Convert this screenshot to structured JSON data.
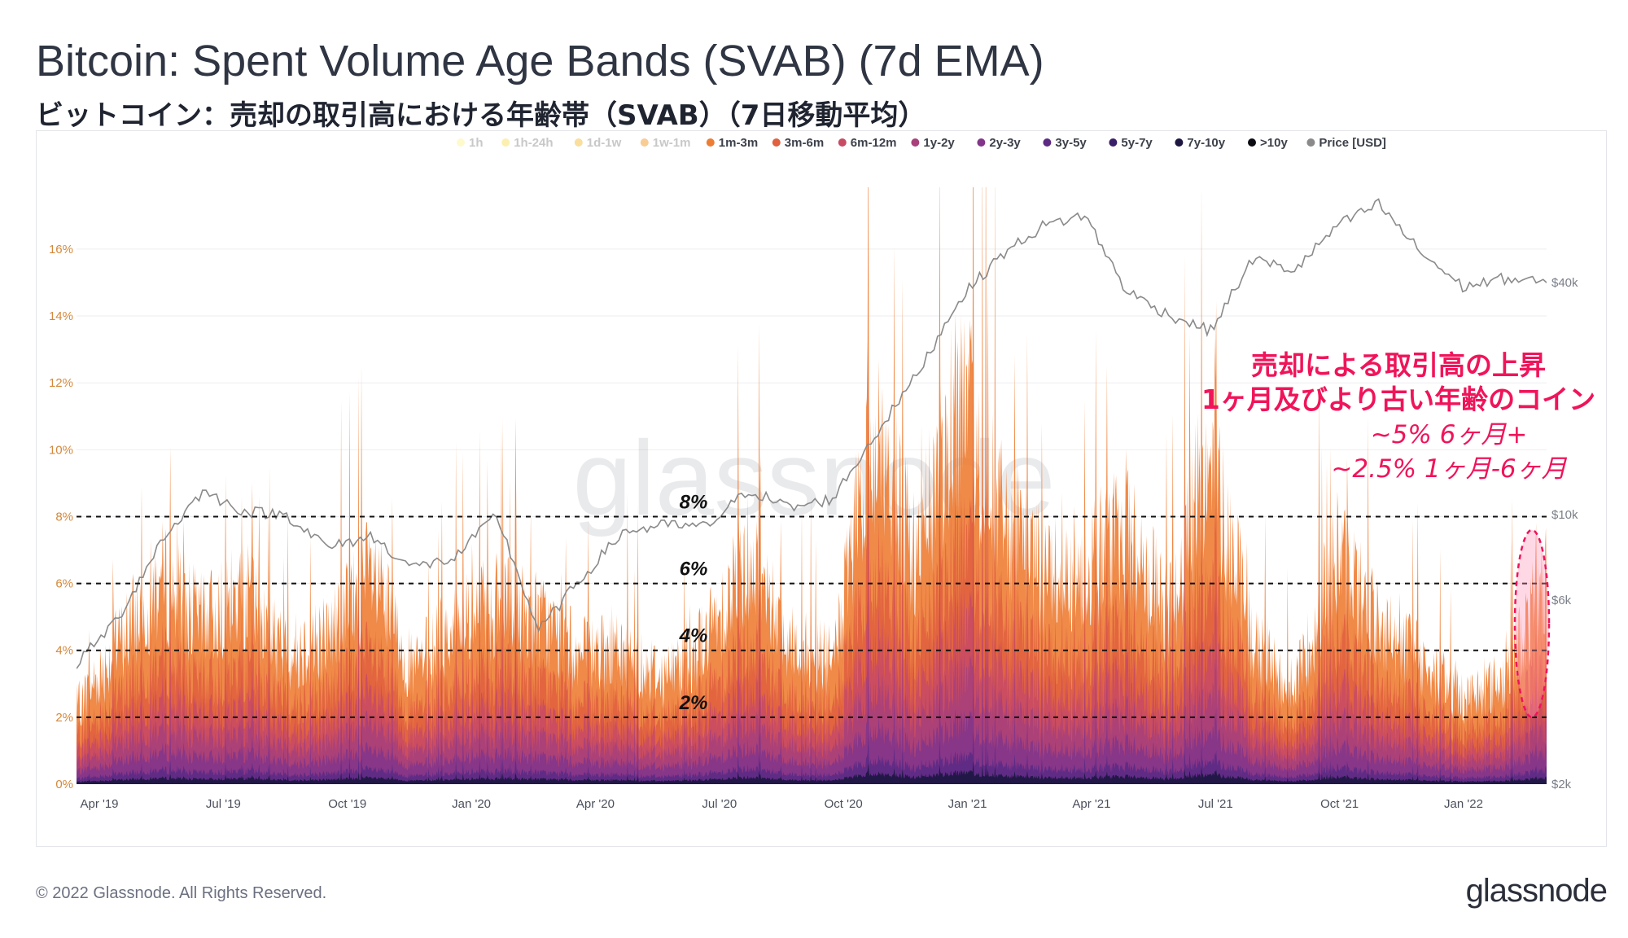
{
  "header": {
    "title": "Bitcoin: Spent Volume Age Bands (SVAB) (7d EMA)",
    "subtitle": "ビットコイン：売却の取引高における年齢帯（SVAB）（7日移動平均）"
  },
  "footer": {
    "copyright": "© 2022 Glassnode. All Rights Reserved.",
    "brand": "glassnode"
  },
  "chart_data": {
    "type": "area",
    "title": "Bitcoin: Spent Volume Age Bands (SVAB) (7d EMA)",
    "watermark": "glassnode",
    "legend_position": "top",
    "legend": [
      {
        "name": "1h",
        "color": "#fff59a"
      },
      {
        "name": "1h-24h",
        "color": "#f7e265"
      },
      {
        "name": "1d-1w",
        "color": "#f6bd3a"
      },
      {
        "name": "1w-1m",
        "color": "#f49a2a"
      },
      {
        "name": "1m-3m",
        "color": "#ee7d34"
      },
      {
        "name": "3m-6m",
        "color": "#e0603f"
      },
      {
        "name": "6m-12m",
        "color": "#c94a63"
      },
      {
        "name": "1y-2y",
        "color": "#a8407a"
      },
      {
        "name": "2y-3y",
        "color": "#83358a"
      },
      {
        "name": "3y-5y",
        "color": "#5c2a85"
      },
      {
        "name": "5y-7y",
        "color": "#3a1e6a"
      },
      {
        "name": "7y-10y",
        "color": "#1c1640"
      },
      {
        "name": ">10y",
        "color": "#0b0b12"
      },
      {
        "name": "Price [USD]",
        "color": "#8a8a8a"
      }
    ],
    "x_ticks": [
      "Apr '19",
      "Jul '19",
      "Oct '19",
      "Jan '20",
      "Apr '20",
      "Jul '20",
      "Oct '20",
      "Jan '21",
      "Apr '21",
      "Jul '21",
      "Oct '21",
      "Jan '22"
    ],
    "y_left": {
      "ticks": [
        "0%",
        "2%",
        "4%",
        "6%",
        "8%",
        "10%",
        "12%",
        "14%",
        "16%"
      ],
      "values": [
        0,
        2,
        4,
        6,
        8,
        10,
        12,
        14,
        16
      ],
      "range": [
        0,
        17.8
      ]
    },
    "y_right": {
      "ticks": [
        "$2k",
        "$6k",
        "$10k",
        "$40k"
      ],
      "values": [
        2000,
        6000,
        10000,
        40000
      ],
      "range": [
        2000,
        70000
      ],
      "scale": "log"
    },
    "reference_lines": [
      {
        "value": 2,
        "label": "2%"
      },
      {
        "value": 4,
        "label": "4%"
      },
      {
        "value": 6,
        "label": "6%"
      },
      {
        "value": 8,
        "label": "8%"
      }
    ],
    "annotation": {
      "lines": [
        "売却による取引高の上昇",
        "1ヶ月及びより古い年齢のコイン",
        "~5% 6ヶ月+",
        "~2.5% 1ヶ月-6ヶ月"
      ],
      "color": "#f0145a",
      "highlight_period": "Mar '22",
      "highlight_range": [
        2.0,
        7.6
      ]
    },
    "series_total_percent": [
      {
        "x": "Apr '19",
        "y": 2.8
      },
      {
        "x": "May '19",
        "y": 5.2
      },
      {
        "x": "Jun '19",
        "y": 7.6
      },
      {
        "x": "Jul '19",
        "y": 6.0
      },
      {
        "x": "Aug '19",
        "y": 7.1
      },
      {
        "x": "Sep '19",
        "y": 4.8
      },
      {
        "x": "Oct '19",
        "y": 5.6
      },
      {
        "x": "Nov '19",
        "y": 7.8
      },
      {
        "x": "Dec '19",
        "y": 4.2
      },
      {
        "x": "Jan '20",
        "y": 6.0
      },
      {
        "x": "Feb '20",
        "y": 6.6
      },
      {
        "x": "Mar '20",
        "y": 6.2
      },
      {
        "x": "Apr '20",
        "y": 4.8
      },
      {
        "x": "May '20",
        "y": 4.9
      },
      {
        "x": "Jun '20",
        "y": 4.0
      },
      {
        "x": "Jul '20",
        "y": 5.4
      },
      {
        "x": "Aug '20",
        "y": 8.6
      },
      {
        "x": "Sep '20",
        "y": 5.3
      },
      {
        "x": "Oct '20",
        "y": 4.5
      },
      {
        "x": "Nov '20",
        "y": 13.0
      },
      {
        "x": "Dec '20",
        "y": 8.3
      },
      {
        "x": "Jan '21",
        "y": 14.6
      },
      {
        "x": "Feb '21",
        "y": 10.0
      },
      {
        "x": "Mar '21",
        "y": 7.9
      },
      {
        "x": "Apr '21",
        "y": 8.1
      },
      {
        "x": "May '21",
        "y": 9.4
      },
      {
        "x": "Jun '21",
        "y": 6.2
      },
      {
        "x": "Jul '21",
        "y": 12.6
      },
      {
        "x": "Aug '21",
        "y": 5.2
      },
      {
        "x": "Sep '21",
        "y": 3.5
      },
      {
        "x": "Oct '21",
        "y": 8.6
      },
      {
        "x": "Nov '21",
        "y": 6.0
      },
      {
        "x": "Dec '21",
        "y": 4.6
      },
      {
        "x": "Jan '22",
        "y": 3.2
      },
      {
        "x": "Feb '22",
        "y": 3.9
      },
      {
        "x": "Mar '22",
        "y": 7.6
      }
    ],
    "price_usd": [
      {
        "x": "Apr '19",
        "y": 4100
      },
      {
        "x": "May '19",
        "y": 5400
      },
      {
        "x": "Jun '19",
        "y": 8500
      },
      {
        "x": "Jul '19",
        "y": 11500
      },
      {
        "x": "Aug '19",
        "y": 10200
      },
      {
        "x": "Sep '19",
        "y": 10000
      },
      {
        "x": "Oct '19",
        "y": 8200
      },
      {
        "x": "Nov '19",
        "y": 8800
      },
      {
        "x": "Dec '19",
        "y": 7300
      },
      {
        "x": "Jan '20",
        "y": 7700
      },
      {
        "x": "Feb '20",
        "y": 10000
      },
      {
        "x": "Mar '20",
        "y": 5000
      },
      {
        "x": "Apr '20",
        "y": 6800
      },
      {
        "x": "May '20",
        "y": 9000
      },
      {
        "x": "Jun '20",
        "y": 9400
      },
      {
        "x": "Jul '20",
        "y": 9300
      },
      {
        "x": "Aug '20",
        "y": 11600
      },
      {
        "x": "Sep '20",
        "y": 10400
      },
      {
        "x": "Oct '20",
        "y": 11000
      },
      {
        "x": "Nov '20",
        "y": 16000
      },
      {
        "x": "Dec '20",
        "y": 23000
      },
      {
        "x": "Jan '21",
        "y": 36000
      },
      {
        "x": "Feb '21",
        "y": 47000
      },
      {
        "x": "Mar '21",
        "y": 56000
      },
      {
        "x": "Apr '21",
        "y": 60000
      },
      {
        "x": "May '21",
        "y": 38000
      },
      {
        "x": "Jun '21",
        "y": 33000
      },
      {
        "x": "Jul '21",
        "y": 30000
      },
      {
        "x": "Aug '21",
        "y": 46000
      },
      {
        "x": "Sep '21",
        "y": 43000
      },
      {
        "x": "Oct '21",
        "y": 56000
      },
      {
        "x": "Nov '21",
        "y": 64000
      },
      {
        "x": "Dec '21",
        "y": 48000
      },
      {
        "x": "Jan '22",
        "y": 39000
      },
      {
        "x": "Feb '22",
        "y": 41000
      },
      {
        "x": "Mar '22",
        "y": 40000
      }
    ]
  }
}
